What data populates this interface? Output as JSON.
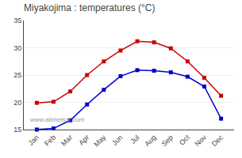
{
  "chart_data": {
    "type": "line",
    "title": "Miyakojima : temperatures (°C)",
    "categories": [
      "Jan",
      "Feb",
      "Mar",
      "Apr",
      "May",
      "Jun",
      "Jul",
      "Aug",
      "Sep",
      "Oct",
      "Nov",
      "Dec"
    ],
    "series": [
      {
        "color": "#cc0000",
        "marker": "square",
        "values": [
          19.9,
          20.1,
          22.0,
          25.0,
          27.5,
          29.5,
          31.2,
          31.0,
          29.9,
          27.5,
          24.5,
          21.2
        ]
      },
      {
        "color": "#0000cc",
        "marker": "square",
        "values": [
          15.0,
          15.2,
          16.7,
          19.6,
          22.3,
          24.8,
          25.9,
          25.8,
          25.5,
          24.7,
          22.9,
          17.0
        ]
      }
    ],
    "ylim": [
      15,
      35
    ],
    "yticks": [
      15,
      20,
      25,
      30,
      35
    ],
    "grid": true,
    "annotations": [
      "www.allmetsat.com"
    ]
  }
}
